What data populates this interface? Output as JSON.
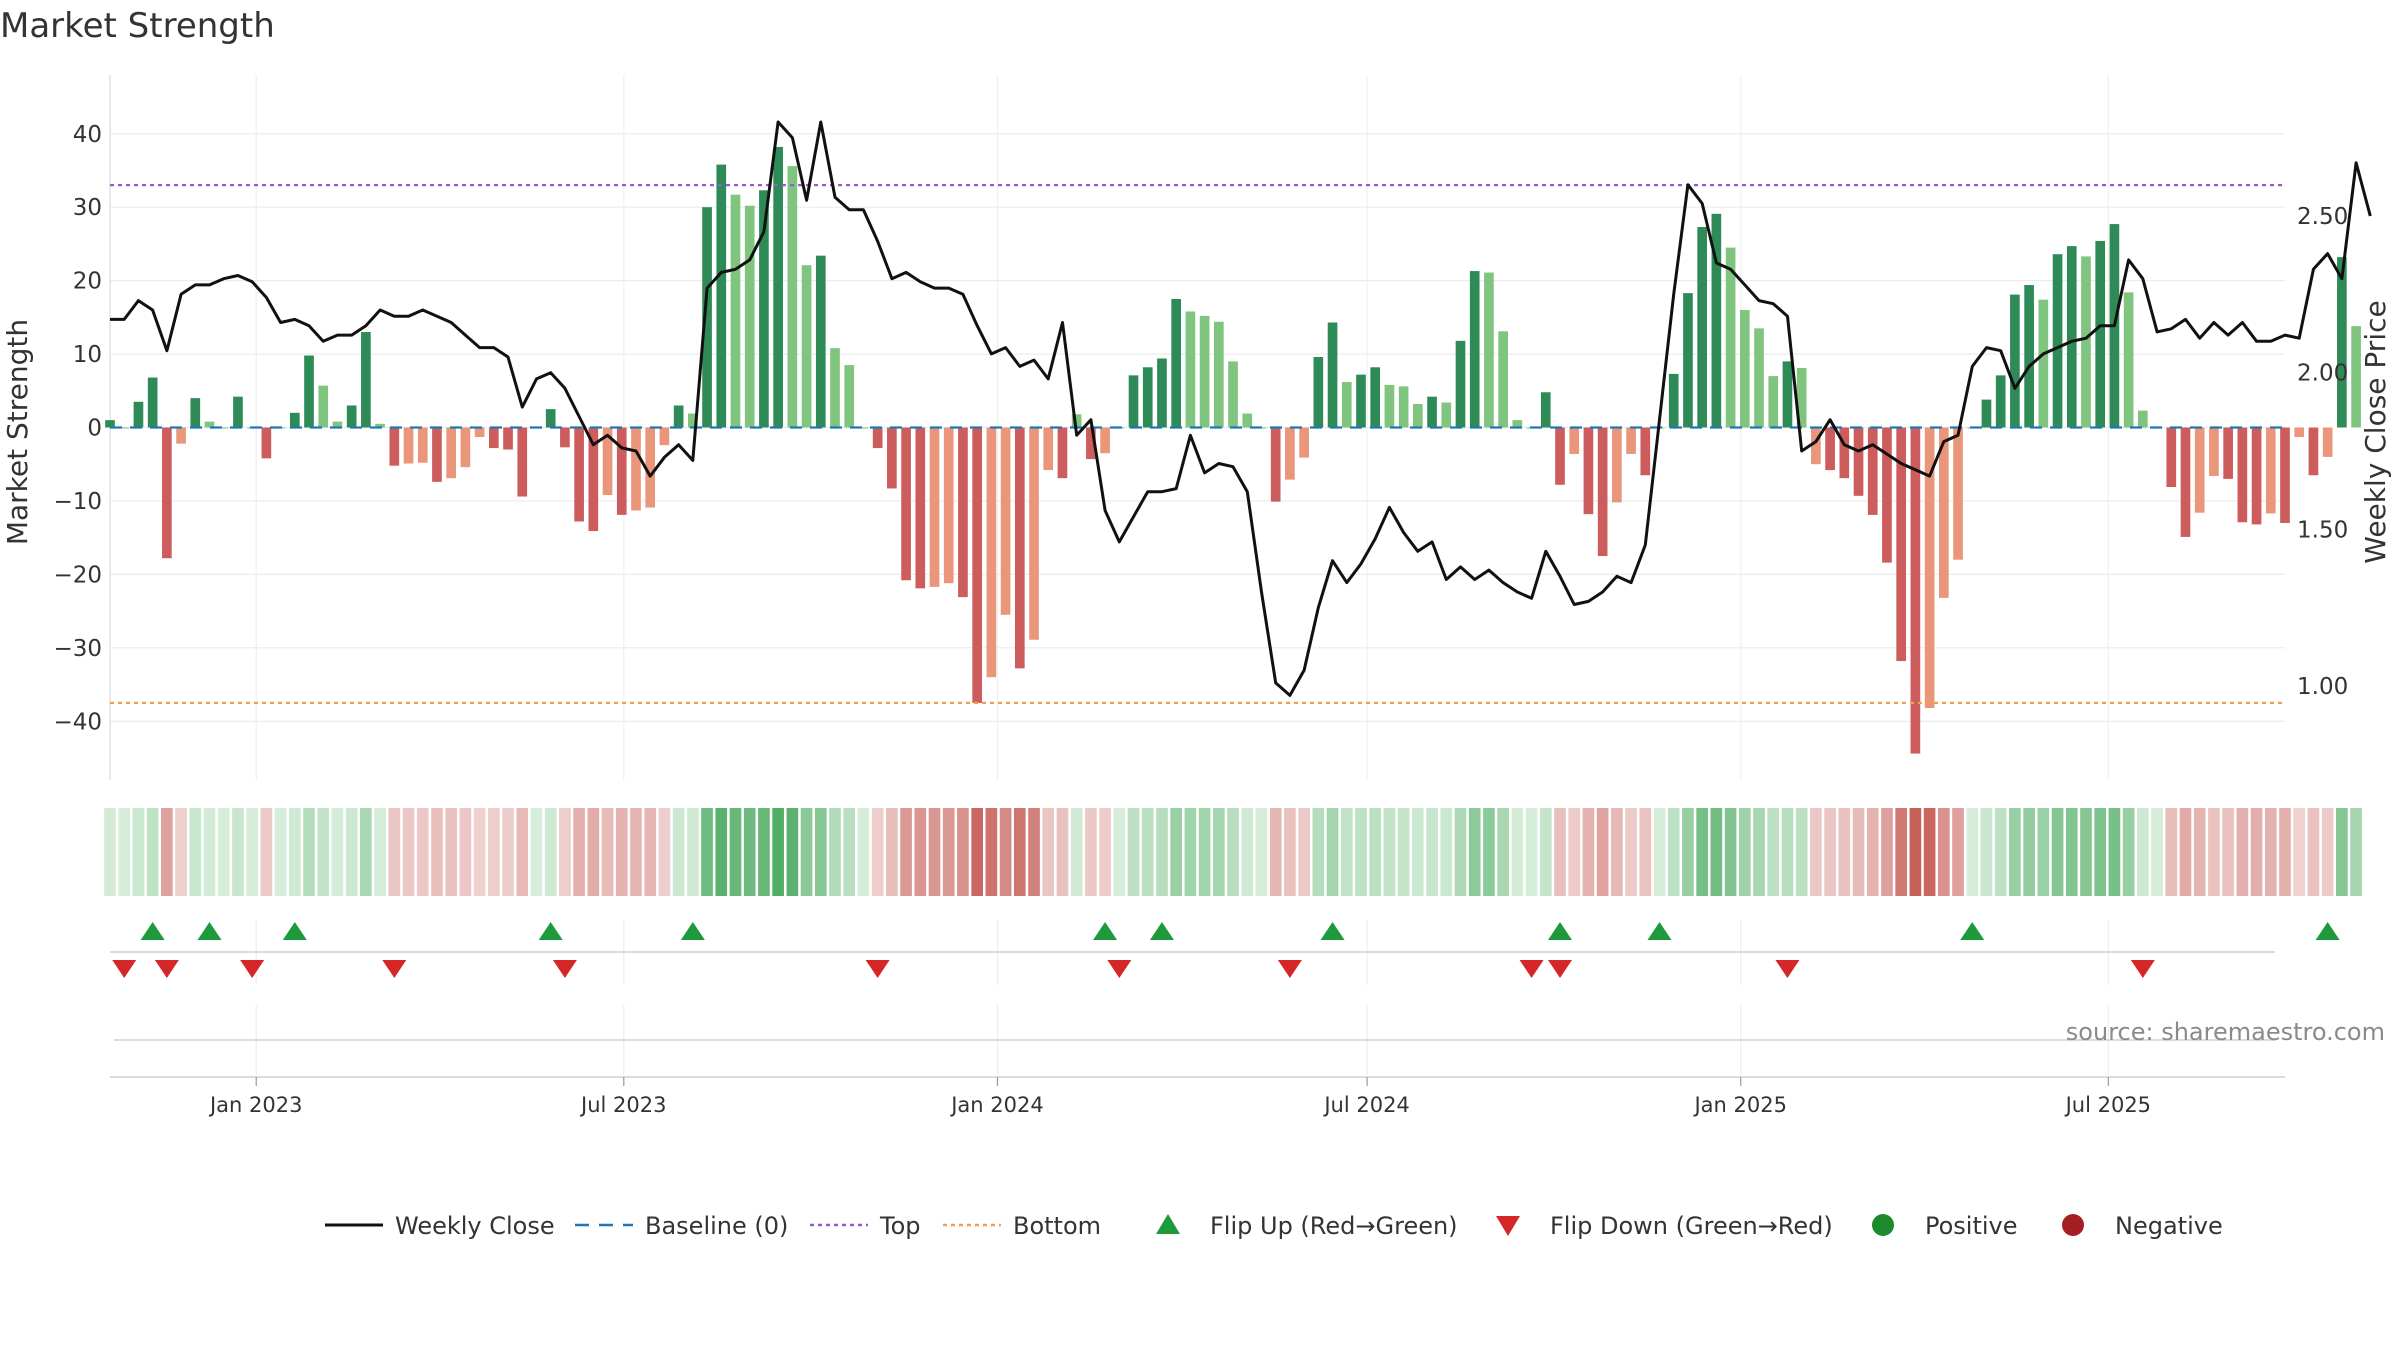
{
  "title": "Market Strength",
  "source": "source: sharemaestro.com",
  "colors": {
    "close": "#111111",
    "baseline": "#1f77b4",
    "top": "#9b59d0",
    "bottom": "#f0a050",
    "flip_up": "#1e9a3c",
    "flip_down": "#d62728",
    "positive": "#1e8a2e",
    "negative": "#a31f24",
    "pos_strong": "#2e8b57",
    "pos_weak": "#7fc47f",
    "neg_strong": "#cd5c5c",
    "neg_weak": "#e9967a"
  },
  "legend": [
    {
      "label": "Weekly Close",
      "icon": "line-solid-icon"
    },
    {
      "label": "Baseline (0)",
      "icon": "line-dashed-icon"
    },
    {
      "label": "Top",
      "icon": "line-dotted-top-icon"
    },
    {
      "label": "Bottom",
      "icon": "line-dotted-bottom-icon"
    },
    {
      "label": "Flip Up (Red→Green)",
      "icon": "triangle-up-icon"
    },
    {
      "label": "Flip Down (Green→Red)",
      "icon": "triangle-down-icon"
    },
    {
      "label": "Positive",
      "icon": "circle-green-icon"
    },
    {
      "label": "Negative",
      "icon": "circle-red-icon"
    }
  ],
  "chart_data": {
    "type": "bar",
    "title": "Market Strength",
    "ylabel": "Market Strength",
    "y2label": "Weekly Close Price",
    "ylim": [
      -48,
      48
    ],
    "y2lim": [
      0.7,
      2.95
    ],
    "yticks": [
      40,
      30,
      20,
      10,
      0,
      -10,
      -20,
      -30,
      -40
    ],
    "ytick_labels": [
      "40",
      "30",
      "20",
      "10",
      "0",
      "−10",
      "−20",
      "−30",
      "−40"
    ],
    "y2ticks": [
      2.5,
      2.0,
      1.5,
      1.0
    ],
    "y2tick_labels": [
      "2.50",
      "2.00",
      "1.50",
      "1.00"
    ],
    "x_start_date": "2022-10-21",
    "x_end_date": "2025-09-26",
    "xticks": [
      "Jan 2023",
      "Jul 2023",
      "Jan 2024",
      "Jul 2024",
      "Jan 2025",
      "Jul 2025"
    ],
    "xtick_dates": [
      "2023-01-01",
      "2023-07-01",
      "2024-01-01",
      "2024-07-01",
      "2025-01-01",
      "2025-07-01"
    ],
    "top": 33,
    "bottom": -37.5,
    "baseline": 0,
    "grid": true,
    "legend_position": "bottom",
    "series": [
      {
        "name": "Market Strength",
        "values": [
          1,
          0,
          3.5,
          6.8,
          -17.8,
          -2.2,
          4,
          0.8,
          0,
          4.2,
          0,
          -4.2,
          0,
          2,
          9.8,
          5.7,
          0.8,
          3,
          13,
          0.5,
          -5.2,
          -4.9,
          -4.8,
          -7.4,
          -6.9,
          -5.4,
          -1.3,
          -2.8,
          -3,
          -9.4,
          0,
          2.5,
          -2.7,
          -12.8,
          -14.1,
          -9.2,
          -11.9,
          -11.3,
          -10.9,
          -2.4,
          3,
          1.9,
          30,
          35.8,
          31.7,
          30.2,
          32.3,
          38.2,
          35.6,
          22.1,
          23.4,
          10.8,
          8.5,
          0,
          -2.8,
          -8.3,
          -20.8,
          -21.9,
          -21.7,
          -21.2,
          -23.1,
          -37.5,
          -34,
          -25.5,
          -32.8,
          -28.9,
          -5.8,
          -6.9,
          1.8,
          -4.3,
          -3.5,
          0,
          7.1,
          8.2,
          9.4,
          17.5,
          15.8,
          15.2,
          14.4,
          9,
          1.9,
          0,
          -10.1,
          -7.1,
          -4.1,
          9.6,
          14.3,
          6.2,
          7.2,
          8.2,
          5.8,
          5.6,
          3.2,
          4.2,
          3.4,
          11.8,
          21.3,
          21.1,
          13.1,
          1,
          0,
          4.8,
          -7.8,
          -3.6,
          -11.8,
          -17.5,
          -10.2,
          -3.6,
          -6.5,
          0,
          7.3,
          18.3,
          27.3,
          29.1,
          24.5,
          16,
          13.5,
          7,
          9,
          8.1,
          -5,
          -5.8,
          -6.9,
          -9.3,
          -11.9,
          -18.4,
          -31.8,
          -44.4,
          -38.2,
          -23.2,
          -18,
          0,
          3.8,
          7.1,
          18.1,
          19.4,
          17.4,
          23.6,
          24.7,
          23.3,
          25.4,
          27.7,
          18.4,
          2.3,
          0,
          -8.1,
          -14.9,
          -11.6,
          -6.6,
          -7,
          -12.9,
          -13.2,
          -11.7,
          -13,
          -1.3,
          -6.5,
          -4,
          23.2,
          13.8
        ]
      },
      {
        "name": "Weekly Close",
        "values": [
          2.17,
          2.17,
          2.23,
          2.2,
          2.07,
          2.25,
          2.28,
          2.28,
          2.3,
          2.31,
          2.29,
          2.24,
          2.16,
          2.17,
          2.15,
          2.1,
          2.12,
          2.12,
          2.15,
          2.2,
          2.18,
          2.18,
          2.2,
          2.18,
          2.16,
          2.12,
          2.08,
          2.08,
          2.05,
          1.89,
          1.98,
          2,
          1.95,
          1.86,
          1.77,
          1.8,
          1.76,
          1.75,
          1.67,
          1.73,
          1.77,
          1.72,
          2.27,
          2.32,
          2.33,
          2.36,
          2.45,
          2.8,
          2.75,
          2.55,
          2.8,
          2.56,
          2.52,
          2.52,
          2.42,
          2.3,
          2.32,
          2.29,
          2.27,
          2.27,
          2.25,
          2.15,
          2.06,
          2.08,
          2.02,
          2.04,
          1.98,
          2.16,
          1.8,
          1.85,
          1.56,
          1.46,
          1.54,
          1.62,
          1.62,
          1.63,
          1.8,
          1.68,
          1.71,
          1.7,
          1.62,
          1.3,
          1.01,
          0.97,
          1.05,
          1.25,
          1.4,
          1.33,
          1.39,
          1.47,
          1.57,
          1.49,
          1.43,
          1.46,
          1.34,
          1.38,
          1.34,
          1.37,
          1.33,
          1.3,
          1.28,
          1.43,
          1.35,
          1.26,
          1.27,
          1.3,
          1.35,
          1.33,
          1.45,
          1.85,
          2.25,
          2.6,
          2.54,
          2.35,
          2.33,
          2.28,
          2.23,
          2.22,
          2.18,
          1.75,
          1.78,
          1.85,
          1.77,
          1.75,
          1.77,
          1.74,
          1.71,
          1.69,
          1.67,
          1.78,
          1.8,
          2.02,
          2.08,
          2.07,
          1.95,
          2.02,
          2.06,
          2.08,
          2.1,
          2.11,
          2.15,
          2.15,
          2.36,
          2.3,
          2.13,
          2.14,
          2.17,
          2.11,
          2.16,
          2.12,
          2.16,
          2.1,
          2.1,
          2.12,
          2.11,
          2.33,
          2.38,
          2.3,
          2.67,
          2.5
        ]
      }
    ],
    "flip_up_indices": [
      3,
      7,
      13,
      31,
      41,
      70,
      74,
      86,
      102,
      109,
      131,
      156
    ],
    "flip_down_indices": [
      1,
      4,
      10,
      20,
      32,
      54,
      71,
      83,
      100,
      102,
      118,
      143
    ]
  }
}
